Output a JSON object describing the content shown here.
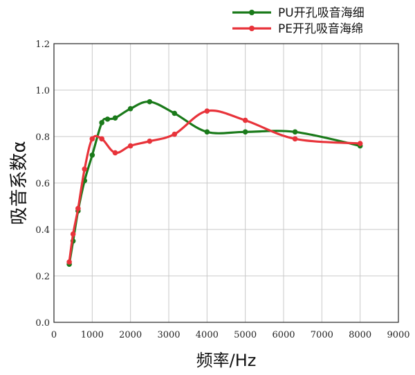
{
  "chart_data": {
    "type": "line",
    "xlabel": "频率/Hz",
    "ylabel": "吸音系数α",
    "xlim": [
      0,
      9000
    ],
    "ylim": [
      0,
      1.2
    ],
    "xticks": [
      0,
      1000,
      2000,
      3000,
      4000,
      5000,
      6000,
      7000,
      8000,
      9000
    ],
    "yticks": [
      "0.0",
      "0.2",
      "0.4",
      "0.6",
      "0.8",
      "1.0",
      "1.2"
    ],
    "grid": true,
    "legend_position": "top-right",
    "series": [
      {
        "name": "PU开孔吸音海细",
        "color": "#1a7a1a",
        "x": [
          400,
          500,
          630,
          800,
          1000,
          1250,
          1400,
          1600,
          2000,
          2500,
          3150,
          4000,
          5000,
          6300,
          8000
        ],
        "y": [
          0.25,
          0.35,
          0.48,
          0.61,
          0.72,
          0.86,
          0.875,
          0.88,
          0.92,
          0.95,
          0.9,
          0.82,
          0.82,
          0.82,
          0.76
        ]
      },
      {
        "name": "PE开孔吸音海绵",
        "color": "#e8333a",
        "x": [
          400,
          500,
          630,
          800,
          1000,
          1250,
          1600,
          2000,
          2500,
          3150,
          4000,
          5000,
          6300,
          8000
        ],
        "y": [
          0.26,
          0.38,
          0.49,
          0.66,
          0.79,
          0.79,
          0.73,
          0.76,
          0.78,
          0.81,
          0.91,
          0.87,
          0.79,
          0.77
        ]
      }
    ]
  }
}
